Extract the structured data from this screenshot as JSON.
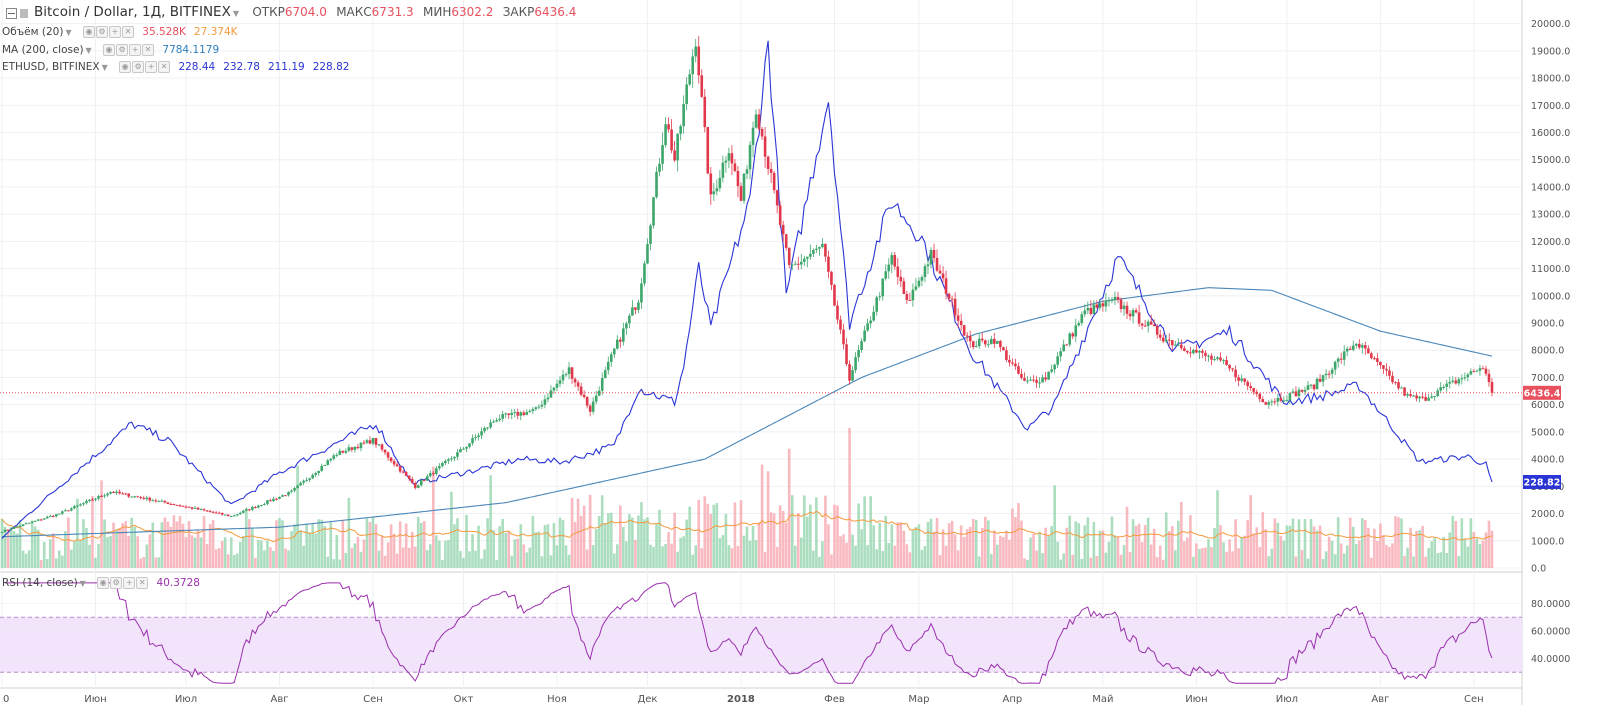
{
  "symbol": {
    "title": "Bitcoin / Dollar, 1Д, BITFINEX",
    "ohlc": [
      {
        "label": "ОТКР",
        "value": "6704.0"
      },
      {
        "label": "МАКС",
        "value": "6731.3"
      },
      {
        "label": "МИН",
        "value": "6302.2"
      },
      {
        "label": "ЗАКР",
        "value": "6436.4"
      }
    ]
  },
  "indicators": {
    "volume": {
      "name": "Объём (20)",
      "value1": "35.528K",
      "value2": "27.374K",
      "color1": "#e8505e",
      "color2": "#f59a3c"
    },
    "ma": {
      "name": "MA (200, close)",
      "value": "7784.1179",
      "color": "#2f7fbf"
    },
    "eth": {
      "name": "ETHUSD, BITFINEX",
      "values": [
        "228.44",
        "232.78",
        "211.19",
        "228.82"
      ],
      "color": "#2b35d6"
    },
    "rsi": {
      "name": "RSI (14, close)",
      "value": "40.3728",
      "color": "#9b2fae"
    }
  },
  "chart_data": [
    {
      "type": "candlestick",
      "name": "Bitcoin / Dollar, 1Д, BITFINEX",
      "x_range": [
        "2017-05-01",
        "2018-09-07"
      ],
      "y_range": [
        0,
        20500
      ],
      "price_ticks": [
        "20000.0",
        "19000.0",
        "18000.0",
        "17000.0",
        "16000.0",
        "15000.0",
        "14000.0",
        "13000.0",
        "12000.0",
        "11000.0",
        "10000.0",
        "9000.0",
        "8000.0",
        "7000.0",
        "6000.0",
        "5000.0",
        "4000.0",
        "3000.0",
        "2000.0",
        "1000.0",
        "0.0"
      ],
      "x_ticks": [
        "0",
        "Июн",
        "Июл",
        "Авг",
        "Сен",
        "Окт",
        "Ноя",
        "Дек",
        "2018",
        "Фев",
        "Мар",
        "Апр",
        "Май",
        "Июн",
        "Июл",
        "Авг",
        "Сен"
      ],
      "price_keypoints": [
        [
          "2017-05-01",
          1350
        ],
        [
          "2017-05-20",
          2000
        ],
        [
          "2017-06-06",
          2800
        ],
        [
          "2017-06-20",
          2500
        ],
        [
          "2017-07-16",
          1900
        ],
        [
          "2017-08-05",
          2800
        ],
        [
          "2017-08-20",
          4200
        ],
        [
          "2017-09-01",
          4700
        ],
        [
          "2017-09-15",
          3000
        ],
        [
          "2017-09-30",
          4300
        ],
        [
          "2017-10-12",
          5500
        ],
        [
          "2017-10-25",
          5800
        ],
        [
          "2017-11-05",
          7300
        ],
        [
          "2017-11-12",
          5800
        ],
        [
          "2017-11-20",
          8000
        ],
        [
          "2017-11-28",
          9900
        ],
        [
          "2017-12-07",
          16500
        ],
        [
          "2017-12-10",
          15000
        ],
        [
          "2017-12-17",
          19500
        ],
        [
          "2017-12-22",
          13500
        ],
        [
          "2017-12-28",
          15500
        ],
        [
          "2018-01-01",
          13500
        ],
        [
          "2018-01-06",
          17000
        ],
        [
          "2018-01-17",
          11000
        ],
        [
          "2018-01-28",
          11800
        ],
        [
          "2018-02-06",
          7000
        ],
        [
          "2018-02-20",
          11400
        ],
        [
          "2018-02-25",
          9700
        ],
        [
          "2018-03-05",
          11500
        ],
        [
          "2018-03-18",
          8200
        ],
        [
          "2018-03-26",
          8400
        ],
        [
          "2018-04-05",
          6800
        ],
        [
          "2018-04-12",
          7000
        ],
        [
          "2018-04-25",
          9400
        ],
        [
          "2018-05-05",
          9800
        ],
        [
          "2018-05-22",
          8400
        ],
        [
          "2018-06-10",
          7500
        ],
        [
          "2018-06-24",
          6100
        ],
        [
          "2018-07-01",
          6300
        ],
        [
          "2018-07-10",
          6700
        ],
        [
          "2018-07-24",
          8300
        ],
        [
          "2018-08-10",
          6300
        ],
        [
          "2018-08-15",
          6200
        ],
        [
          "2018-09-04",
          7400
        ],
        [
          "2018-09-07",
          6436.4
        ]
      ],
      "ma200_keypoints": [
        [
          "2017-05-01",
          1150
        ],
        [
          "2017-08-01",
          1500
        ],
        [
          "2017-10-15",
          2400
        ],
        [
          "2017-12-20",
          4000
        ],
        [
          "2018-02-10",
          7000
        ],
        [
          "2018-03-20",
          8600
        ],
        [
          "2018-05-01",
          9800
        ],
        [
          "2018-06-05",
          10300
        ],
        [
          "2018-06-26",
          10200
        ],
        [
          "2018-08-01",
          8700
        ],
        [
          "2018-09-07",
          7784
        ]
      ],
      "eth_keypoints": [
        [
          "2017-05-01",
          1100
        ],
        [
          "2017-05-20",
          3000
        ],
        [
          "2017-06-13",
          5300
        ],
        [
          "2017-06-25",
          4700
        ],
        [
          "2017-07-16",
          2300
        ],
        [
          "2017-08-01",
          3500
        ],
        [
          "2017-08-20",
          4600
        ],
        [
          "2017-09-02",
          5300
        ],
        [
          "2017-09-14",
          3100
        ],
        [
          "2017-10-05",
          3600
        ],
        [
          "2017-10-20",
          4000
        ],
        [
          "2017-11-03",
          3900
        ],
        [
          "2017-11-20",
          4500
        ],
        [
          "2017-11-28",
          6600
        ],
        [
          "2017-12-10",
          6100
        ],
        [
          "2017-12-13",
          7400
        ],
        [
          "2017-12-18",
          11000
        ],
        [
          "2017-12-22",
          8800
        ],
        [
          "2018-01-04",
          13500
        ],
        [
          "2018-01-10",
          19300
        ],
        [
          "2018-01-16",
          10000
        ],
        [
          "2018-01-30",
          17300
        ],
        [
          "2018-02-06",
          9000
        ],
        [
          "2018-02-20",
          13500
        ],
        [
          "2018-03-02",
          12100
        ],
        [
          "2018-03-18",
          8000
        ],
        [
          "2018-04-06",
          5100
        ],
        [
          "2018-04-15",
          6000
        ],
        [
          "2018-05-06",
          11400
        ],
        [
          "2018-05-25",
          8000
        ],
        [
          "2018-06-12",
          8700
        ],
        [
          "2018-06-30",
          6100
        ],
        [
          "2018-07-12",
          6300
        ],
        [
          "2018-07-25",
          6700
        ],
        [
          "2018-08-14",
          3900
        ],
        [
          "2018-08-30",
          4100
        ],
        [
          "2018-09-05",
          3800
        ],
        [
          "2018-09-07",
          3100
        ]
      ],
      "price_line": {
        "value": "6436.4",
        "color": "#e8505e"
      },
      "eth_line_label": {
        "value": "228.82",
        "color": "#2b35d6"
      },
      "colors": {
        "up": "#3da66b",
        "down": "#e0384a",
        "ma": "#4a86b8",
        "eth": "#2b35d6",
        "volume_ma": "#f59a3c"
      }
    },
    {
      "type": "line",
      "name": "RSI (14, close)",
      "y_range": [
        20,
        100
      ],
      "ticks": [
        "80.0000",
        "60.0000",
        "40.0000"
      ],
      "band": [
        30,
        70
      ],
      "last_value": 40.3728,
      "color": "#9b2fae"
    }
  ]
}
